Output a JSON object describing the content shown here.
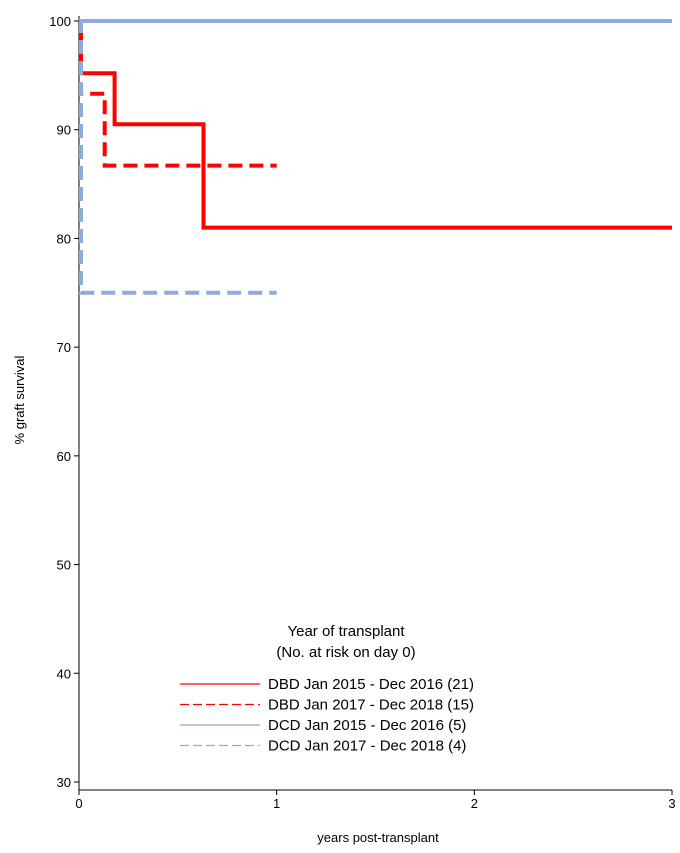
{
  "chart_data": {
    "type": "line",
    "title": "",
    "xlabel": "years post-transplant",
    "ylabel": "% graft survival",
    "xlim": [
      0,
      3
    ],
    "ylim": [
      30,
      100
    ],
    "x_ticks": [
      "0",
      "1",
      "2",
      "3"
    ],
    "y_ticks": [
      "30",
      "40",
      "50",
      "60",
      "70",
      "80",
      "90",
      "100"
    ],
    "grid": false,
    "legend": {
      "title_line1": "Year of transplant",
      "title_line2": "(No. at risk on day 0)",
      "placement": "bottom-center"
    },
    "series": [
      {
        "name": "DBD Jan 2015 - Dec 2016 (21)",
        "color": "#ff0000",
        "dash": "solid",
        "points": [
          [
            0,
            100
          ],
          [
            0.01,
            100
          ],
          [
            0.01,
            95.2
          ],
          [
            0.18,
            95.2
          ],
          [
            0.18,
            90.5
          ],
          [
            0.63,
            90.5
          ],
          [
            0.63,
            81.0
          ],
          [
            3,
            81.0
          ]
        ]
      },
      {
        "name": "DBD Jan 2017 - Dec 2018 (15)",
        "color": "#ff0000",
        "dash": "dashed",
        "points": [
          [
            0,
            100
          ],
          [
            0.01,
            100
          ],
          [
            0.01,
            93.3
          ],
          [
            0.13,
            93.3
          ],
          [
            0.13,
            86.7
          ],
          [
            1,
            86.7
          ]
        ]
      },
      {
        "name": "DCD Jan 2015 - Dec 2016 (5)",
        "color": "#8faadc",
        "dash": "solid",
        "points": [
          [
            0,
            100
          ],
          [
            3,
            100
          ]
        ]
      },
      {
        "name": "DCD Jan 2017 - Dec 2018 (4)",
        "color": "#8faadc",
        "dash": "dashed",
        "points": [
          [
            0,
            100
          ],
          [
            0.01,
            100
          ],
          [
            0.01,
            75.0
          ],
          [
            1,
            75.0
          ]
        ]
      }
    ]
  }
}
